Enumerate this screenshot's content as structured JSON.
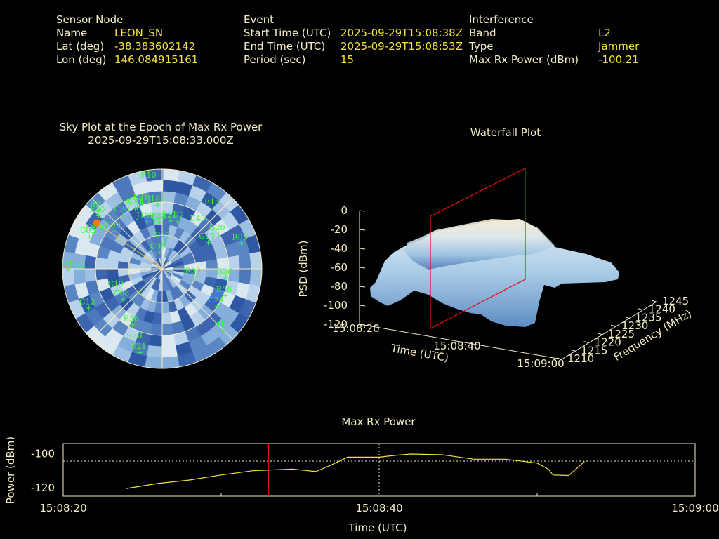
{
  "sensor": {
    "heading": "Sensor Node",
    "name_label": "Name",
    "name_value": "LEON_SN",
    "lat_label": "Lat (deg)",
    "lat_value": "-38.383602142",
    "lon_label": "Lon (deg)",
    "lon_value": "146.084915161"
  },
  "event": {
    "heading": "Event",
    "start_label": "Start Time (UTC)",
    "start_value": "2025-09-29T15:08:38Z",
    "end_label": "End Time (UTC)",
    "end_value": "2025-09-29T15:08:53Z",
    "period_label": "Period (sec)",
    "period_value": "15"
  },
  "interference": {
    "heading": "Interference",
    "band_label": "Band",
    "band_value": "L2",
    "type_label": "Type",
    "type_value": "Jammer",
    "power_label": "Max Rx Power (dBm)",
    "power_value": "-100.21"
  },
  "colors": {
    "label": "#f4ecc4",
    "value": "#f2e23a",
    "satellite": "#33ff33",
    "marker": "#ff0000",
    "trace": "#f2e23a"
  },
  "chart_data": [
    {
      "type": "polar-skyplot",
      "title": "Sky Plot at the Epoch of Max Rx Power",
      "subtitle": "2025-09-29T15:08:33.000Z",
      "satellites": [
        {
          "id": "R10",
          "az": -8,
          "el": 10
        },
        {
          "id": "C43",
          "az": -22,
          "el": 30
        },
        {
          "id": "E31",
          "az": -17,
          "el": 28
        },
        {
          "id": "J182",
          "az": -4,
          "el": 32
        },
        {
          "id": "E15",
          "az": 40,
          "el": 18
        },
        {
          "id": "R21",
          "az": -47,
          "el": 12
        },
        {
          "id": "E10",
          "az": -50,
          "el": 15
        },
        {
          "id": "G30",
          "az": -24,
          "el": 30
        },
        {
          "id": "C38",
          "az": -36,
          "el": 30
        },
        {
          "id": "J199",
          "az": -18,
          "el": 45
        },
        {
          "id": "C28",
          "az": -3,
          "el": 48
        },
        {
          "id": "E21",
          "az": 10,
          "el": 46
        },
        {
          "id": "G22",
          "az": 18,
          "el": 45
        },
        {
          "id": "E43",
          "az": 40,
          "el": 38
        },
        {
          "id": "J200",
          "az": -62,
          "el": 22
        },
        {
          "id": "C09",
          "az": -52,
          "el": 35
        },
        {
          "id": "G20",
          "az": 58,
          "el": 30
        },
        {
          "id": "R05",
          "az": 72,
          "el": 15
        },
        {
          "id": "G15",
          "az": 60,
          "el": 42
        },
        {
          "id": "C05",
          "az": -66,
          "el": 18
        },
        {
          "id": "G25",
          "az": 3,
          "el": 65
        },
        {
          "id": "C06",
          "az": -10,
          "el": 75
        },
        {
          "id": "R09",
          "az": 104,
          "el": 60
        },
        {
          "id": "C4",
          "az": -90,
          "el": 5
        },
        {
          "id": "R22",
          "az": -92,
          "el": 15
        },
        {
          "id": "C19",
          "az": -115,
          "el": 45
        },
        {
          "id": "C08",
          "az": -128,
          "el": 45
        },
        {
          "id": "G26",
          "az": 98,
          "el": 32
        },
        {
          "id": "R08",
          "az": 113,
          "el": 28
        },
        {
          "id": "G24",
          "az": 124,
          "el": 30
        },
        {
          "id": "C12",
          "az": -118,
          "el": 15
        },
        {
          "id": "E36",
          "az": -152,
          "el": 33
        },
        {
          "id": "R20",
          "az": -160,
          "el": 20
        },
        {
          "id": "R11",
          "az": 135,
          "el": 12
        },
        {
          "id": "G21",
          "az": -165,
          "el": 12
        }
      ],
      "jammer": {
        "az": -55,
        "el": 18
      }
    },
    {
      "type": "surface",
      "title": "Waterfall Plot",
      "zlabel": "PSD (dBm)",
      "xlabel": "Time (UTC)",
      "ylabel": "Frequency (MHz)",
      "z_ticks": [
        "0",
        "-20",
        "-40",
        "-60",
        "-80",
        "-100",
        "-120"
      ],
      "time_ticks": [
        "15:08:20",
        "15:08:40",
        "15:09:00"
      ],
      "freq_ticks": [
        "1210",
        "1215",
        "1220",
        "1225",
        "1230",
        "1235",
        "1240",
        "1245"
      ],
      "zlim": [
        -120,
        0
      ],
      "freq_range": [
        1210,
        1245
      ],
      "plateau_level": -20,
      "plateau_freq": [
        1212,
        1240
      ],
      "plateau_time": [
        "15:08:25",
        "15:08:53"
      ]
    },
    {
      "type": "line",
      "title": "Max Rx Power",
      "xlabel": "Time (UTC)",
      "ylabel": "Power (dBm)",
      "x_ticks": [
        "15:08:20",
        "15:08:40",
        "15:09:00"
      ],
      "y_ticks": [
        "-100",
        "-120"
      ],
      "ylim": [
        -125,
        -94
      ],
      "x_range_s": [
        0,
        40
      ],
      "marker_t": 13,
      "series": [
        {
          "t": [
            4,
            6,
            8,
            10,
            12,
            14.5,
            16,
            17,
            18,
            20,
            21,
            22,
            24,
            26,
            28,
            30,
            30.7,
            31,
            32,
            33
          ],
          "v": [
            -120.5,
            -117.5,
            -115.5,
            -112.5,
            -110,
            -109,
            -110.5,
            -106.5,
            -102,
            -102,
            -101,
            -100.2,
            -100.6,
            -103.2,
            -103.2,
            -105.5,
            -109,
            -112.5,
            -112.8,
            -104.5
          ]
        }
      ]
    }
  ]
}
